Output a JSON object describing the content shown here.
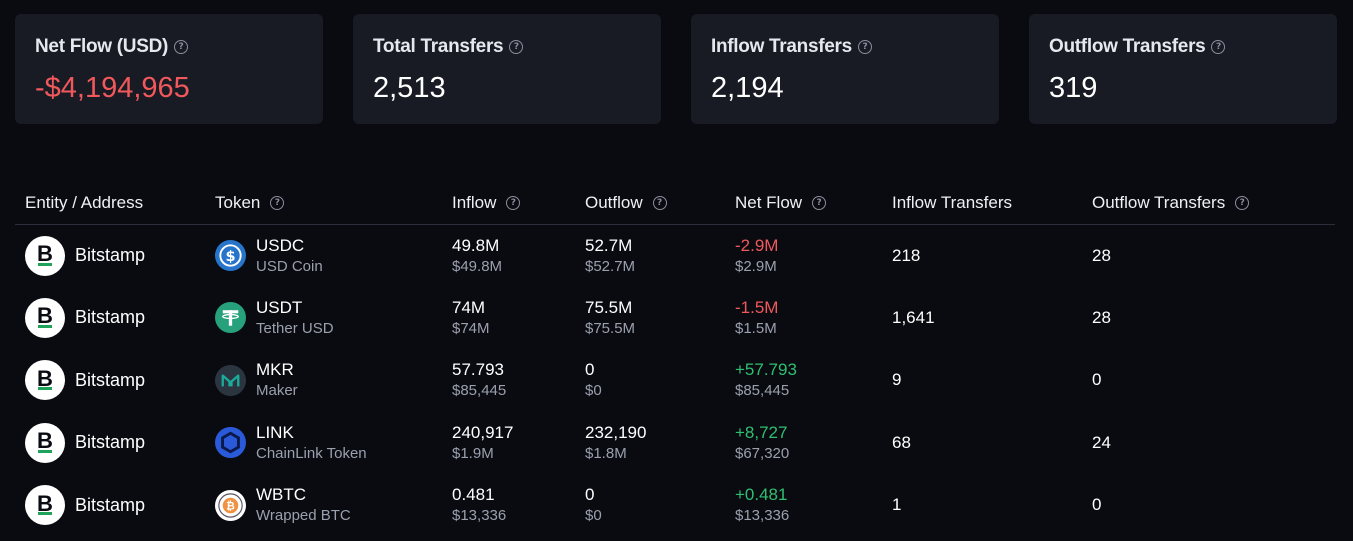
{
  "summary_cards": [
    {
      "title": "Net Flow (USD)",
      "value": "-$4,194,965",
      "negative": true
    },
    {
      "title": "Total Transfers",
      "value": "2,513",
      "negative": false
    },
    {
      "title": "Inflow Transfers",
      "value": "2,194",
      "negative": false
    },
    {
      "title": "Outflow Transfers",
      "value": "319",
      "negative": false
    }
  ],
  "table": {
    "headers": {
      "entity": "Entity / Address",
      "token": "Token",
      "inflow": "Inflow",
      "outflow": "Outflow",
      "net_flow": "Net Flow",
      "inflow_transfers": "Inflow Transfers",
      "outflow_transfers": "Outflow Transfers"
    },
    "rows": [
      {
        "entity": "Bitstamp",
        "token_symbol": "USDC",
        "token_name": "USD Coin",
        "token_icon": "usdc-icon",
        "inflow": "49.8M",
        "inflow_usd": "$49.8M",
        "outflow": "52.7M",
        "outflow_usd": "$52.7M",
        "net_flow": "-2.9M",
        "net_flow_usd": "$2.9M",
        "net_sign": "neg",
        "inflow_transfers": "218",
        "outflow_transfers": "28"
      },
      {
        "entity": "Bitstamp",
        "token_symbol": "USDT",
        "token_name": "Tether USD",
        "token_icon": "usdt-icon",
        "inflow": "74M",
        "inflow_usd": "$74M",
        "outflow": "75.5M",
        "outflow_usd": "$75.5M",
        "net_flow": "-1.5M",
        "net_flow_usd": "$1.5M",
        "net_sign": "neg",
        "inflow_transfers": "1,641",
        "outflow_transfers": "28"
      },
      {
        "entity": "Bitstamp",
        "token_symbol": "MKR",
        "token_name": "Maker",
        "token_icon": "mkr-icon",
        "inflow": "57.793",
        "inflow_usd": "$85,445",
        "outflow": "0",
        "outflow_usd": "$0",
        "net_flow": "+57.793",
        "net_flow_usd": "$85,445",
        "net_sign": "pos",
        "inflow_transfers": "9",
        "outflow_transfers": "0"
      },
      {
        "entity": "Bitstamp",
        "token_symbol": "LINK",
        "token_name": "ChainLink Token",
        "token_icon": "link-icon",
        "inflow": "240,917",
        "inflow_usd": "$1.9M",
        "outflow": "232,190",
        "outflow_usd": "$1.8M",
        "net_flow": "+8,727",
        "net_flow_usd": "$67,320",
        "net_sign": "pos",
        "inflow_transfers": "68",
        "outflow_transfers": "24"
      },
      {
        "entity": "Bitstamp",
        "token_symbol": "WBTC",
        "token_name": "Wrapped BTC",
        "token_icon": "wbtc-icon",
        "inflow": "0.481",
        "inflow_usd": "$13,336",
        "outflow": "0",
        "outflow_usd": "$0",
        "net_flow": "+0.481",
        "net_flow_usd": "$13,336",
        "net_sign": "pos",
        "inflow_transfers": "1",
        "outflow_transfers": "0"
      }
    ]
  },
  "colors": {
    "background": "#0a0b11",
    "card": "#181b24",
    "negative": "#f0585c",
    "positive": "#2fbf71",
    "muted": "#9aa0ad"
  }
}
